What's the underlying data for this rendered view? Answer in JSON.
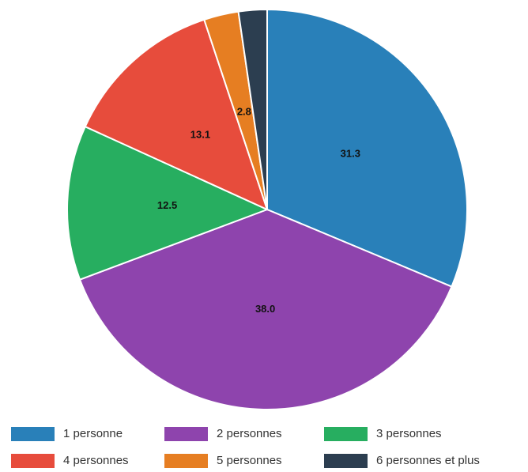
{
  "chart_data": {
    "type": "pie",
    "categories": [
      "1 personne",
      "2 personnes",
      "3 personnes",
      "4 personnes",
      "5 personnes",
      "6 personnes et plus"
    ],
    "values": [
      31.3,
      38.0,
      12.5,
      13.1,
      2.8,
      2.3
    ],
    "value_labels": [
      "31.3",
      "38.0",
      "12.5",
      "13.1",
      "2.8",
      null
    ],
    "colors": [
      "#2980b9",
      "#8e44ad",
      "#27ae60",
      "#e74c3c",
      "#e67e22",
      "#2c3e50"
    ],
    "legend": "bottom"
  }
}
